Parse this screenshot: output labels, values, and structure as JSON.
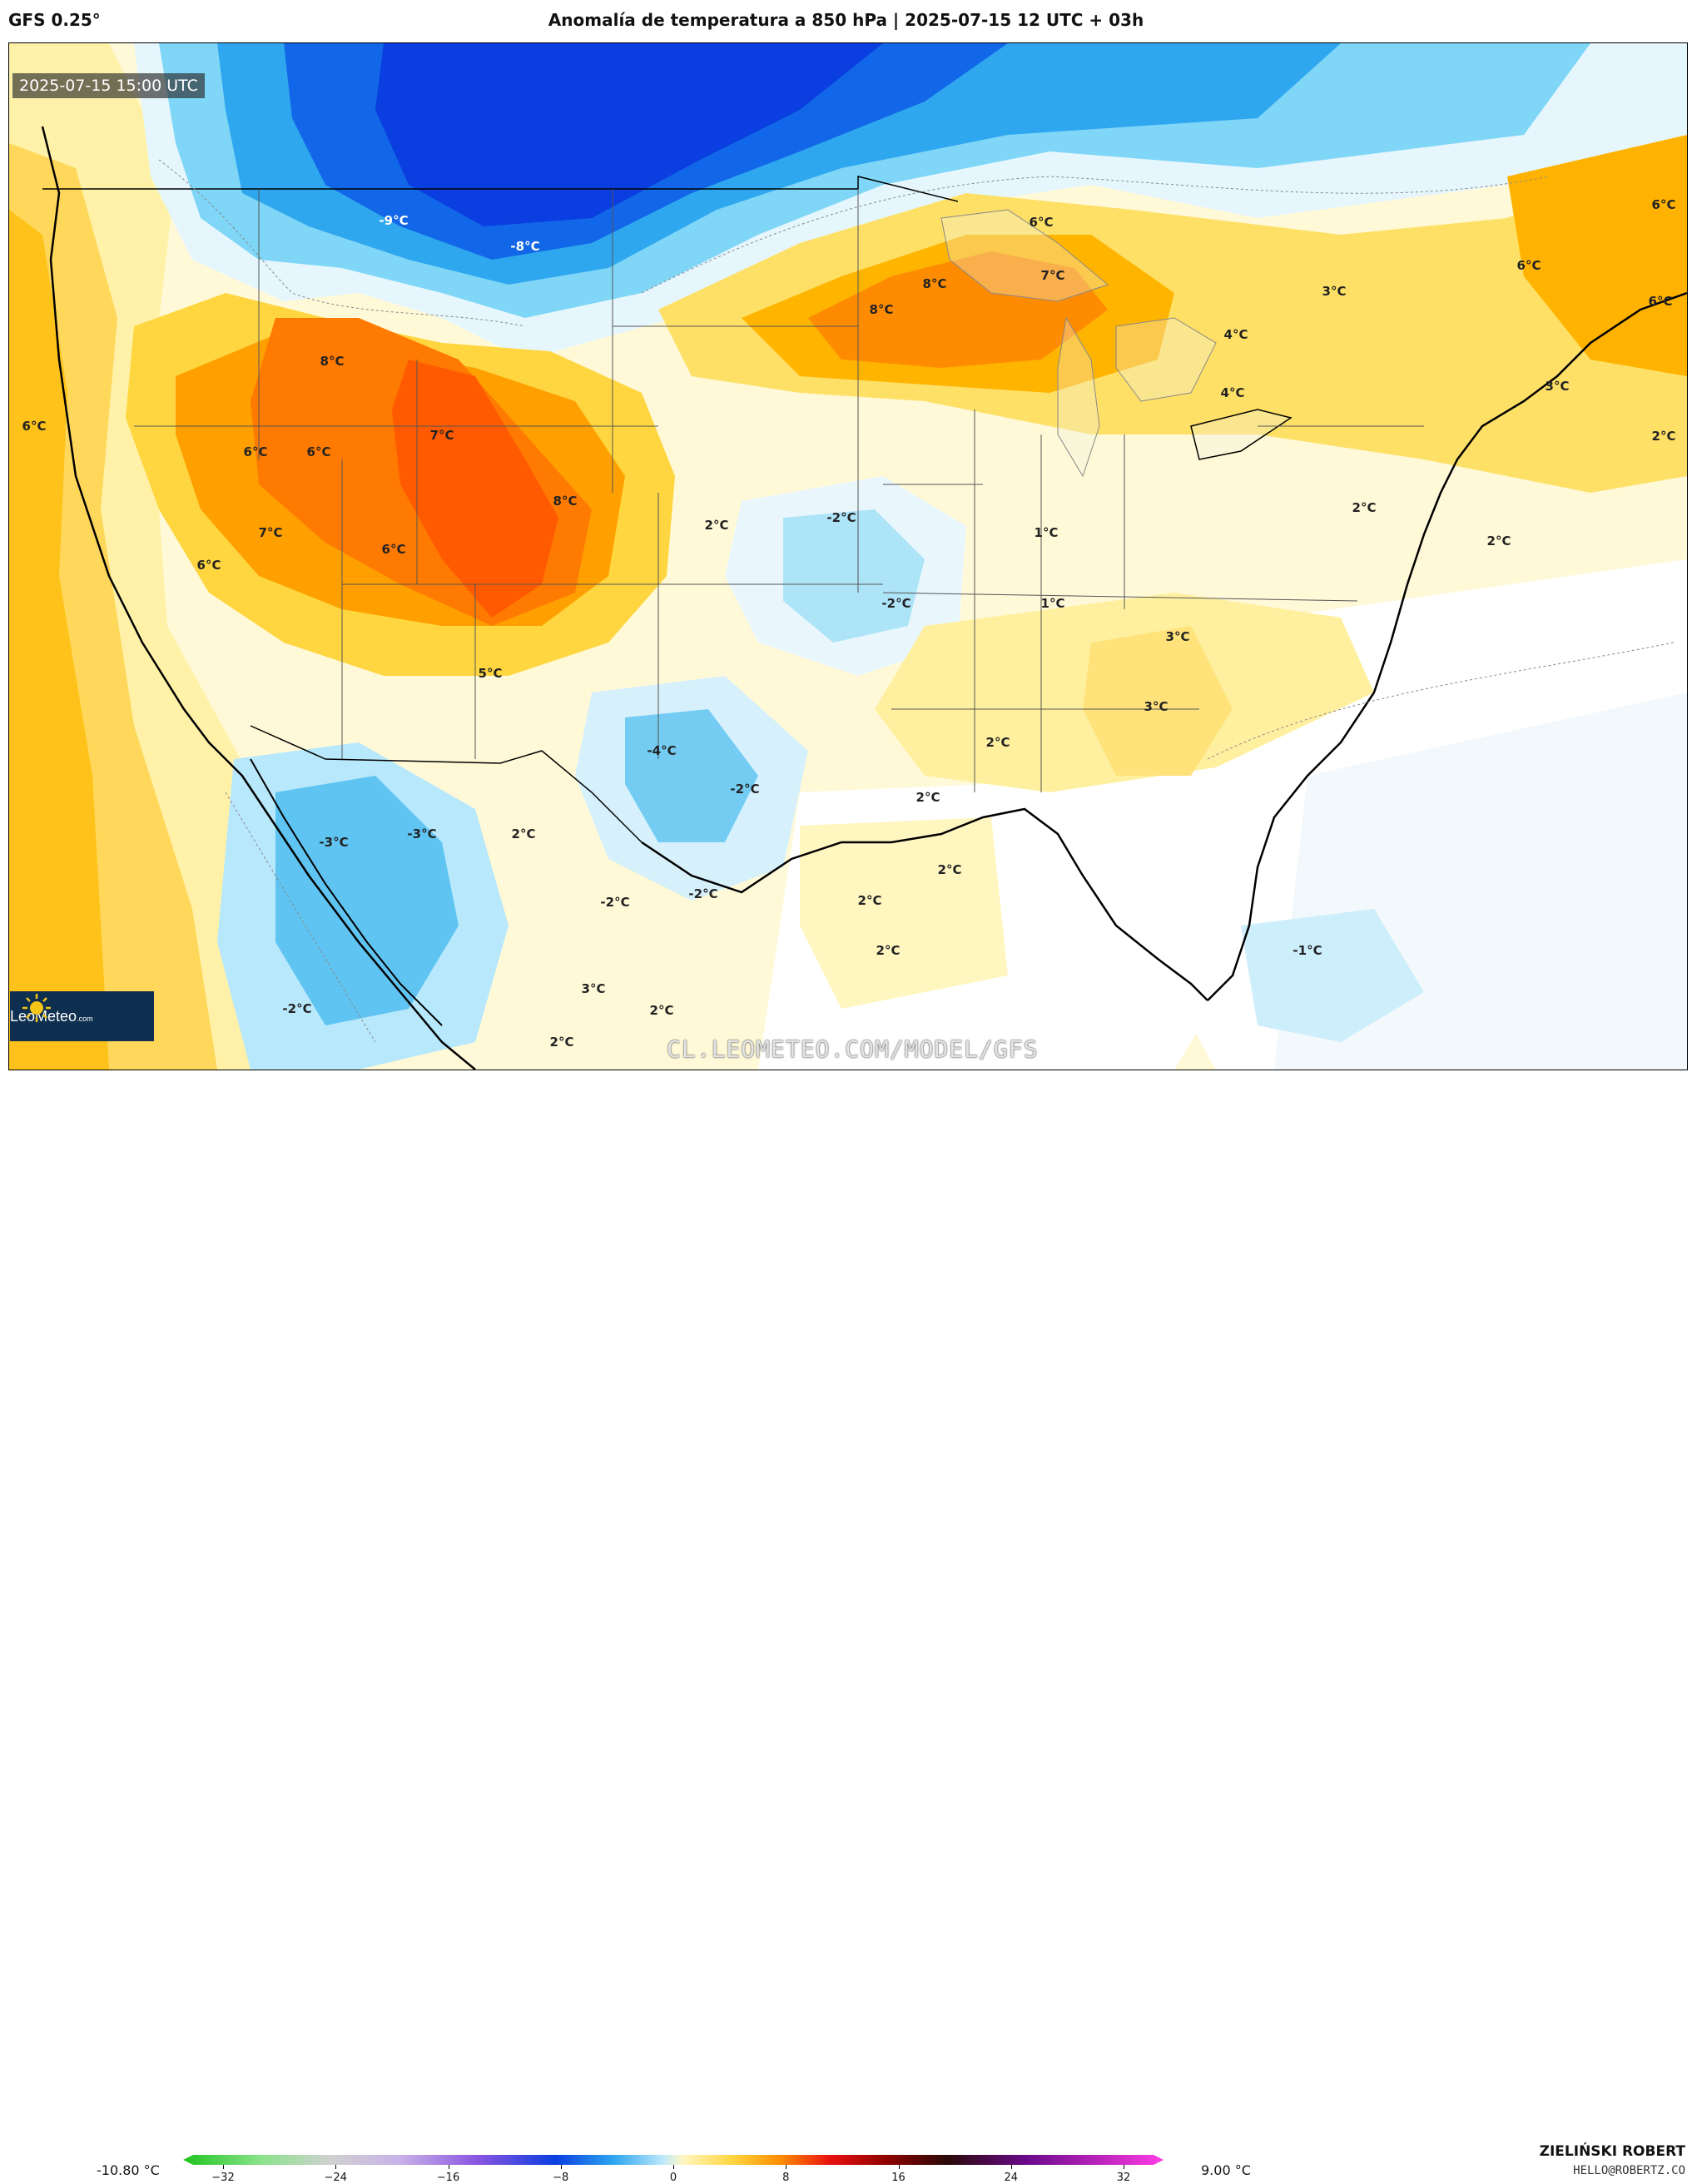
{
  "header": {
    "model": "GFS 0.25°",
    "title": "Anomalía de temperatura a 850 hPa | 2025-07-15 12 UTC + 03h"
  },
  "map": {
    "timestamp": "2025-07-15 15:00 UTC",
    "watermark_url": "CL.LEOMETEO.COM/MODEL/GFS",
    "logo_text": "LeoMeteo",
    "logo_suffix": ".com",
    "labels": [
      {
        "text": "-9°C"
      },
      {
        "text": "-8°C"
      },
      {
        "text": "6°C"
      },
      {
        "text": "8°C"
      },
      {
        "text": "7°C"
      },
      {
        "text": "8°C"
      },
      {
        "text": "6°C"
      },
      {
        "text": "6°C"
      },
      {
        "text": "6°C"
      },
      {
        "text": "3°C"
      },
      {
        "text": "4°C"
      },
      {
        "text": "4°C"
      },
      {
        "text": "3°C"
      },
      {
        "text": "2°C"
      },
      {
        "text": "8°C"
      },
      {
        "text": "6°C"
      },
      {
        "text": "7°C"
      },
      {
        "text": "6°C"
      },
      {
        "text": "6°C"
      },
      {
        "text": "8°C"
      },
      {
        "text": "7°C"
      },
      {
        "text": "6°C"
      },
      {
        "text": "6°C"
      },
      {
        "text": "2°C"
      },
      {
        "text": "-2°C"
      },
      {
        "text": "1°C"
      },
      {
        "text": "2°C"
      },
      {
        "text": "2°C"
      },
      {
        "text": "-2°C"
      },
      {
        "text": "1°C"
      },
      {
        "text": "3°C"
      },
      {
        "text": "5°C"
      },
      {
        "text": "3°C"
      },
      {
        "text": "-4°C"
      },
      {
        "text": "2°C"
      },
      {
        "text": "-2°C"
      },
      {
        "text": "2°C"
      },
      {
        "text": "-3°C"
      },
      {
        "text": "-3°C"
      },
      {
        "text": "2°C"
      },
      {
        "text": "2°C"
      },
      {
        "text": "-2°C"
      },
      {
        "text": "-2°C"
      },
      {
        "text": "2°C"
      },
      {
        "text": "2°C"
      },
      {
        "text": "-1°C"
      },
      {
        "text": "3°C"
      },
      {
        "text": "2°C"
      },
      {
        "text": "-2°C"
      },
      {
        "text": "2°C"
      }
    ]
  },
  "colorbar": {
    "min_label": "-10.80 °C",
    "max_label": "9.00 °C",
    "ticks": [
      "−32",
      "−24",
      "−16",
      "−8",
      "0",
      "8",
      "16",
      "24",
      "32"
    ],
    "range": [
      -32,
      32
    ]
  },
  "footer": {
    "author": "ZIELIŃSKI ROBERT",
    "email": "HELLO@ROBERTZ.CO"
  }
}
